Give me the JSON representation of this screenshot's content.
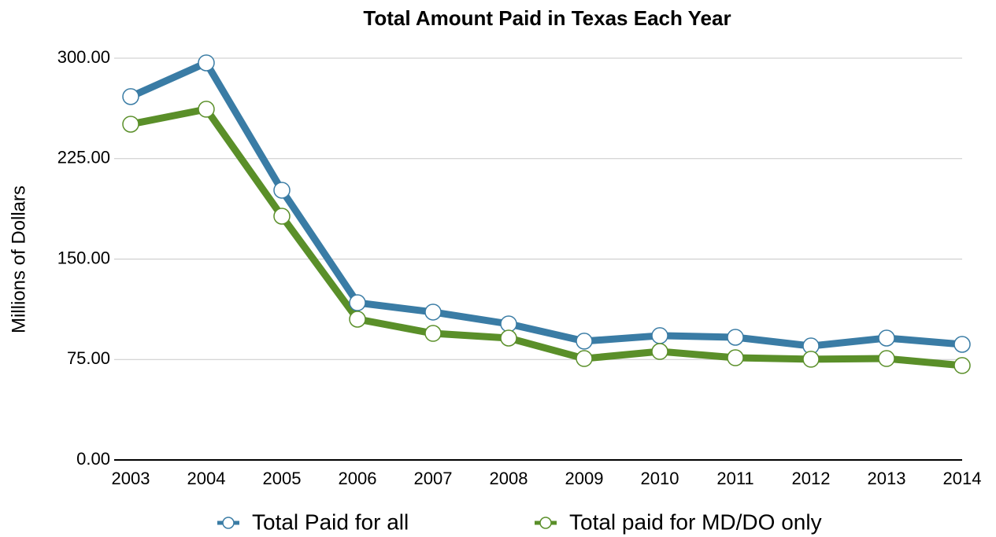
{
  "chart_data": {
    "type": "line",
    "title": "Total Amount Paid in Texas Each Year",
    "y_label": "Millions of Dollars",
    "categories": [
      "2003",
      "2004",
      "2005",
      "2006",
      "2007",
      "2008",
      "2009",
      "2010",
      "2011",
      "2012",
      "2013",
      "2014"
    ],
    "series": [
      {
        "name": "Total Paid for all",
        "color": "#3a7ca5",
        "values": [
          271.3,
          296.5,
          201.4,
          117.4,
          110.4,
          101.6,
          88.7,
          92.8,
          91.6,
          85.1,
          91.0,
          86.3
        ]
      },
      {
        "name": "Total paid for MD/DO only",
        "color": "#5a8f29",
        "values": [
          250.7,
          261.9,
          182.0,
          105.1,
          94.5,
          91.0,
          75.7,
          81.0,
          76.3,
          75.2,
          75.7,
          70.5
        ]
      }
    ],
    "ylim": [
      0,
      300
    ],
    "yticks": [
      {
        "value": 0,
        "label": "0.00"
      },
      {
        "value": 75,
        "label": "75.00"
      },
      {
        "value": 150,
        "label": "150.00"
      },
      {
        "value": 225,
        "label": "225.00"
      },
      {
        "value": 300,
        "label": "300.00"
      }
    ],
    "grid": true,
    "legend": "bottom"
  }
}
